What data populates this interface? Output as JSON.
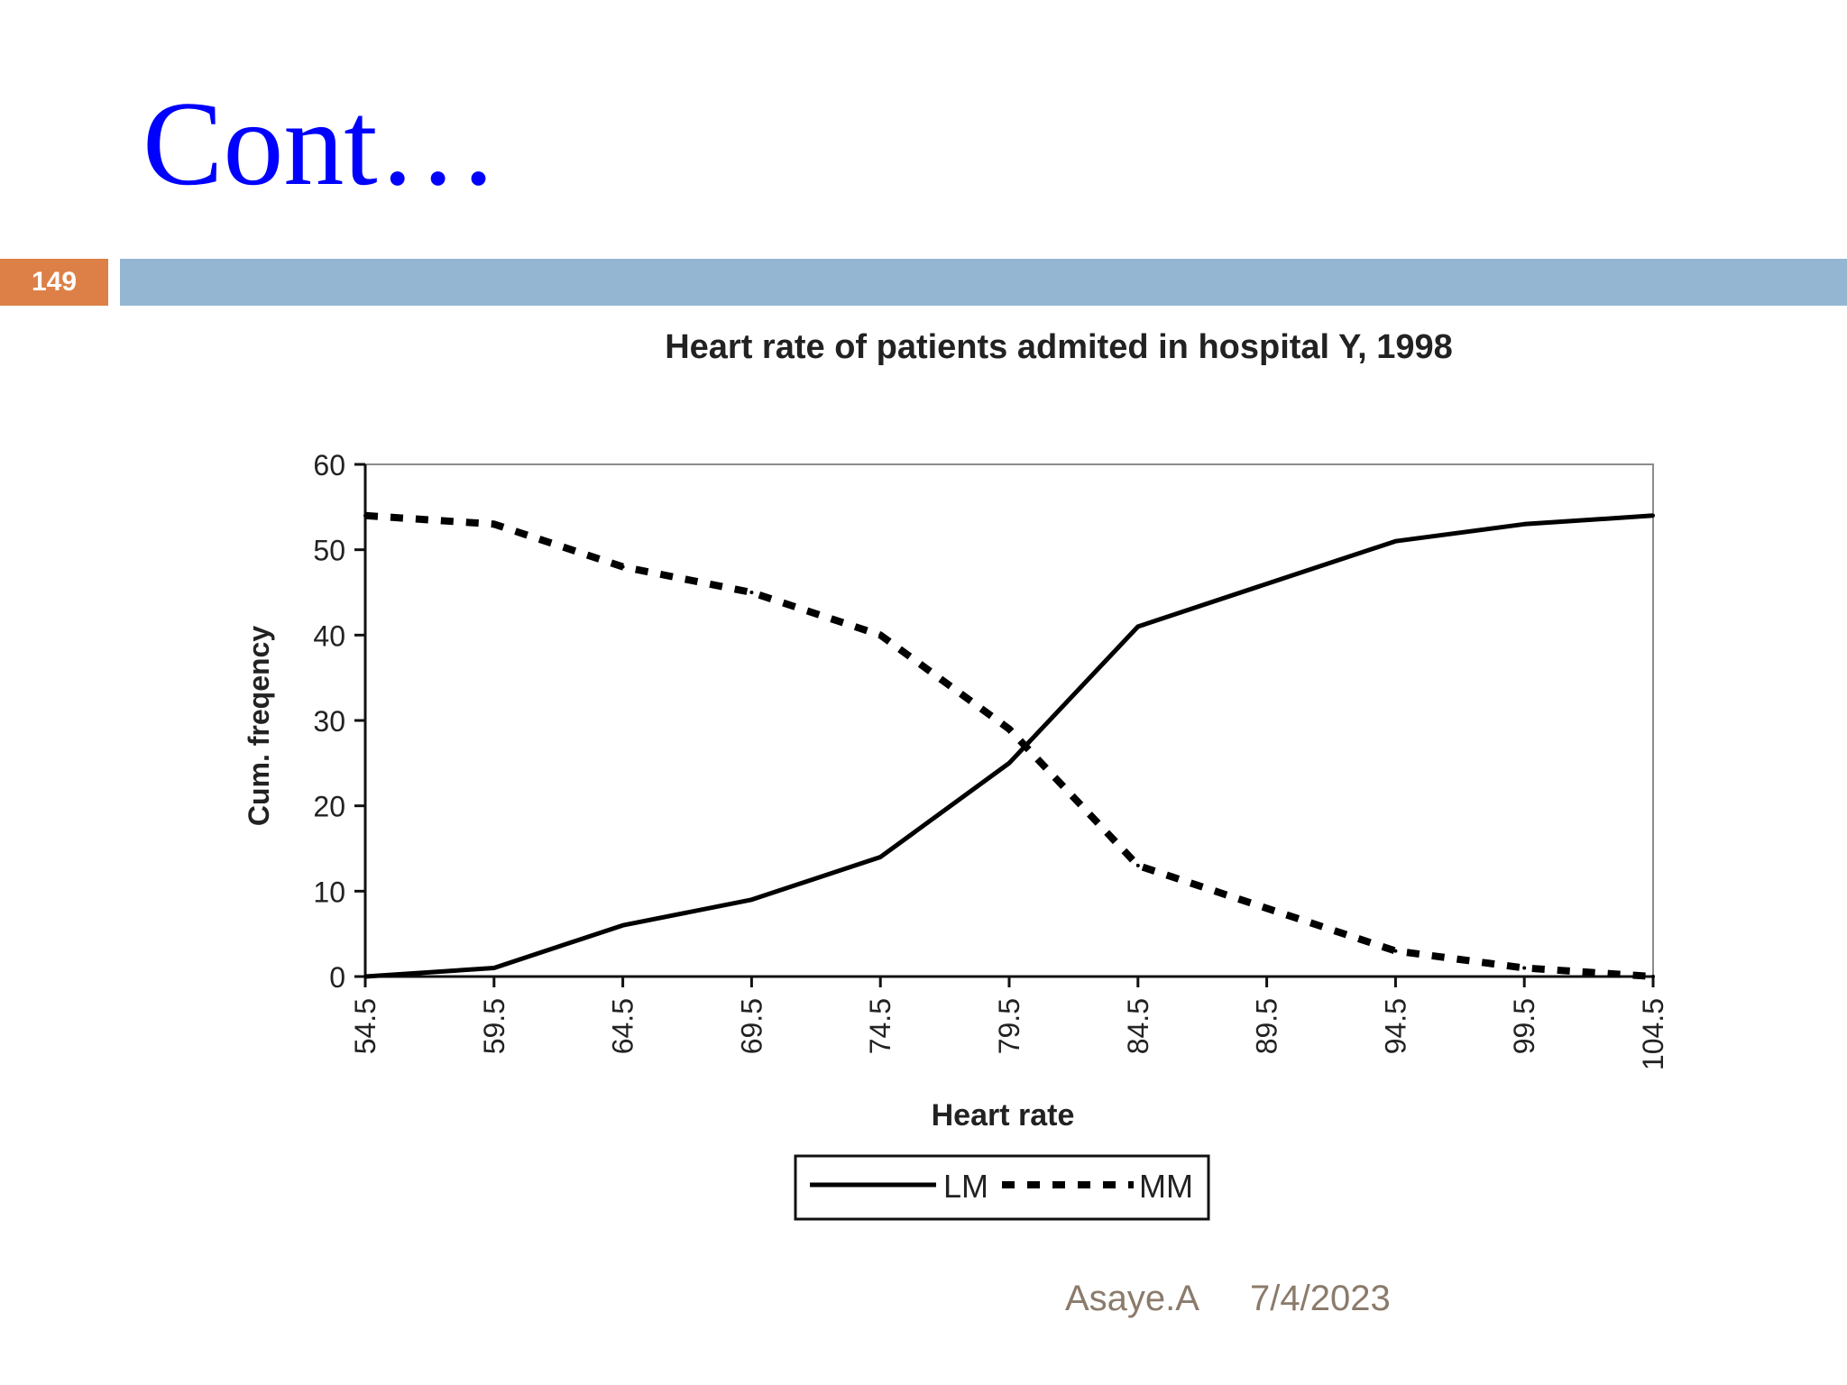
{
  "slide": {
    "title": "Cont…",
    "number": "149",
    "footer_author": "Asaye.A",
    "footer_date": "7/4/2023"
  },
  "colors": {
    "title": "#0000ff",
    "number_box": "#dd8047",
    "band": "#94b6d2",
    "footer": "#8b7b6b",
    "series": "#000000"
  },
  "chart_data": {
    "type": "line",
    "title": "Heart rate of patients admited in hospital Y, 1998",
    "xlabel": "Heart rate",
    "ylabel": "Cum. freqency",
    "categories": [
      "54.5",
      "59.5",
      "64.5",
      "69.5",
      "74.5",
      "79.5",
      "84.5",
      "89.5",
      "94.5",
      "99.5",
      "104.5"
    ],
    "ylim": [
      0,
      60
    ],
    "yticks": [
      0,
      10,
      20,
      30,
      40,
      50,
      60
    ],
    "series": [
      {
        "name": "LM",
        "style": "solid",
        "values": [
          0,
          1,
          6,
          9,
          14,
          25,
          41,
          46,
          51,
          53,
          54
        ]
      },
      {
        "name": "MM",
        "style": "dotted",
        "values": [
          54,
          53,
          48,
          45,
          40,
          29,
          13,
          8,
          3,
          1,
          0
        ]
      }
    ],
    "legend_position": "bottom-center",
    "grid": false
  }
}
